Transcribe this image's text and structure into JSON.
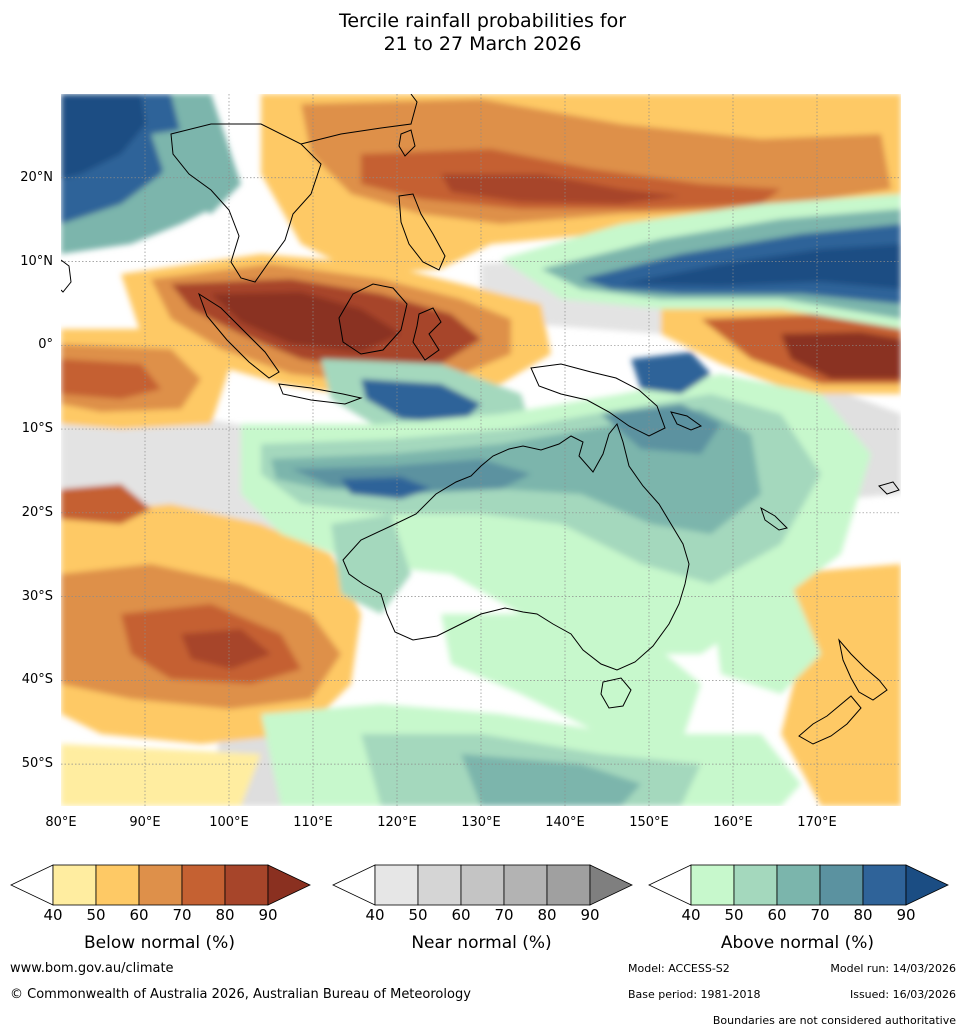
{
  "title": {
    "line1": "Tercile rainfall probabilities for",
    "line2": "21 to 27 March 2026"
  },
  "map": {
    "lat_labels": [
      "20°N",
      "10°N",
      "0°",
      "10°S",
      "20°S",
      "30°S",
      "40°S",
      "50°S"
    ],
    "lon_labels": [
      "80°E",
      "90°E",
      "100°E",
      "110°E",
      "120°E",
      "130°E",
      "140°E",
      "150°E",
      "160°E",
      "170°E"
    ],
    "extent": {
      "lon": [
        80,
        180
      ],
      "lat": [
        -55,
        30
      ]
    },
    "colors": {
      "below": [
        "#ffeda0",
        "#fec965",
        "#de904a",
        "#c56132",
        "#a7452a",
        "#8a3020"
      ],
      "near": [
        "#e6e6e6",
        "#d5d5d5",
        "#c4c4c4",
        "#b3b3b3",
        "#a0a0a0",
        "#7f7f7f"
      ],
      "above": [
        "#c7f8cc",
        "#a4d8bd",
        "#7bb5ac",
        "#5b92a0",
        "#2f6399",
        "#1b4d83"
      ],
      "grid": "#8c8c8c",
      "coast": "#000000"
    }
  },
  "legends": [
    {
      "title": "Below normal (%)",
      "ticks": [
        "40",
        "50",
        "60",
        "70",
        "80",
        "90"
      ]
    },
    {
      "title": "Near normal (%)",
      "ticks": [
        "40",
        "50",
        "60",
        "70",
        "80",
        "90"
      ]
    },
    {
      "title": "Above normal (%)",
      "ticks": [
        "40",
        "50",
        "60",
        "70",
        "80",
        "90"
      ]
    }
  ],
  "footer": {
    "website": "www.bom.gov.au/climate",
    "copyright": "© Commonwealth of Australia 2026, Australian Bureau of Meteorology",
    "model": "Model: ACCESS-S2",
    "model_run": "Model run: 14/03/2026",
    "base_period": "Base period: 1981-2018",
    "issued": "Issued: 16/03/2026",
    "disclaimer": "Boundaries are not considered authoritative"
  }
}
